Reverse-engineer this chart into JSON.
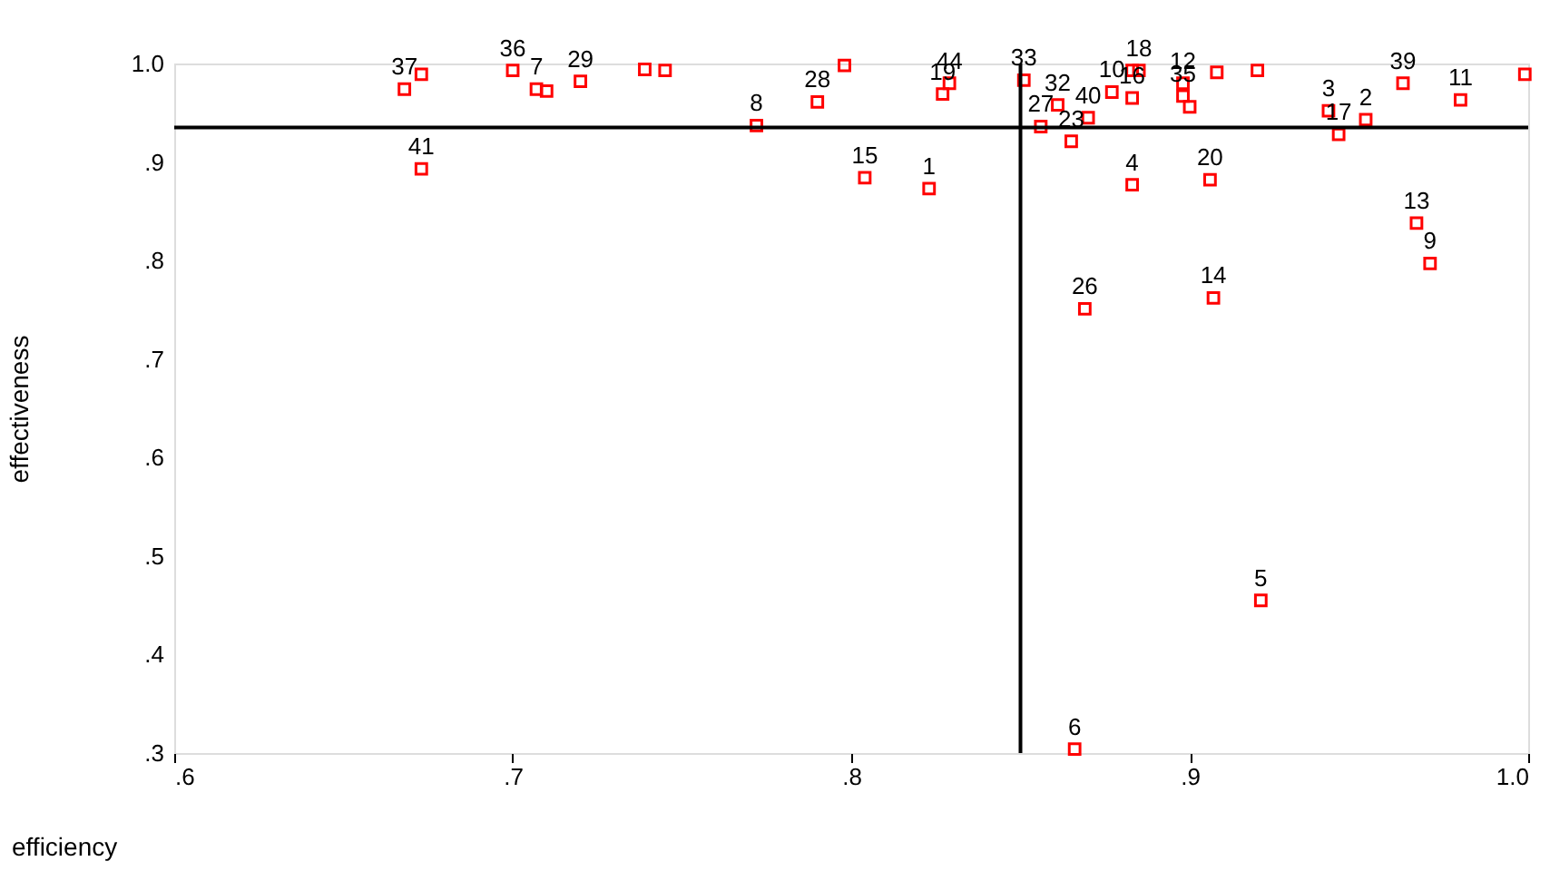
{
  "chart_data": {
    "type": "scatter",
    "xlabel": "efficiency",
    "ylabel": "effectiveness",
    "x": [
      0.668,
      0.673,
      0.673,
      0.7,
      0.707,
      0.71,
      0.72,
      0.739,
      0.745,
      0.772,
      0.79,
      0.798,
      0.804,
      0.823,
      0.827,
      0.829,
      0.851,
      0.856,
      0.861,
      0.865,
      0.87,
      0.877,
      0.883,
      0.883,
      0.885,
      0.898,
      0.898,
      0.9,
      0.908,
      0.92,
      0.941,
      0.944,
      0.952,
      0.963,
      0.98,
      0.999,
      0.883,
      0.906,
      0.967,
      0.971,
      0.869,
      0.907,
      0.921,
      0.866
    ],
    "series": [
      {
        "color": "#ff0000",
        "values": [
          0.974,
          0.989,
          0.893,
          0.993,
          0.974,
          0.972,
          0.982,
          0.994,
          0.993,
          0.937,
          0.961,
          0.998,
          0.884,
          0.873,
          0.969,
          0.98,
          0.983,
          0.936,
          0.958,
          0.921,
          0.945,
          0.971,
          0.965,
          0.993,
          0.993,
          0.98,
          0.967,
          0.956,
          0.991,
          0.993,
          0.952,
          0.928,
          0.943,
          0.98,
          0.963,
          0.989,
          0.877,
          0.882,
          0.838,
          0.797,
          0.751,
          0.762,
          0.455,
          0.304
        ]
      }
    ],
    "annotations": [
      {
        "text": "37",
        "x": 0.668,
        "y": 0.974
      },
      {
        "text": "41",
        "x": 0.673,
        "y": 0.893
      },
      {
        "text": "36",
        "x": 0.7,
        "y": 0.993
      },
      {
        "text": "7",
        "x": 0.707,
        "y": 0.974
      },
      {
        "text": "29",
        "x": 0.72,
        "y": 0.982
      },
      {
        "text": "8",
        "x": 0.772,
        "y": 0.937
      },
      {
        "text": "28",
        "x": 0.79,
        "y": 0.961
      },
      {
        "text": "15",
        "x": 0.804,
        "y": 0.884
      },
      {
        "text": "1",
        "x": 0.823,
        "y": 0.873
      },
      {
        "text": "19",
        "x": 0.827,
        "y": 0.969
      },
      {
        "text": "44",
        "x": 0.829,
        "y": 0.98
      },
      {
        "text": "33",
        "x": 0.851,
        "y": 0.983
      },
      {
        "text": "27",
        "x": 0.856,
        "y": 0.936
      },
      {
        "text": "32",
        "x": 0.861,
        "y": 0.958
      },
      {
        "text": "23",
        "x": 0.865,
        "y": 0.921
      },
      {
        "text": "40",
        "x": 0.87,
        "y": 0.945
      },
      {
        "text": "10",
        "x": 0.877,
        "y": 0.971
      },
      {
        "text": "16",
        "x": 0.883,
        "y": 0.965
      },
      {
        "text": "18",
        "x": 0.885,
        "y": 0.993
      },
      {
        "text": "12",
        "x": 0.898,
        "y": 0.98
      },
      {
        "text": "35",
        "x": 0.898,
        "y": 0.967
      },
      {
        "text": "3",
        "x": 0.941,
        "y": 0.952
      },
      {
        "text": "17",
        "x": 0.944,
        "y": 0.928
      },
      {
        "text": "2",
        "x": 0.952,
        "y": 0.943
      },
      {
        "text": "39",
        "x": 0.963,
        "y": 0.98
      },
      {
        "text": "11",
        "x": 0.98,
        "y": 0.963
      },
      {
        "text": "4",
        "x": 0.883,
        "y": 0.877
      },
      {
        "text": "20",
        "x": 0.906,
        "y": 0.882
      },
      {
        "text": "13",
        "x": 0.967,
        "y": 0.838
      },
      {
        "text": "9",
        "x": 0.971,
        "y": 0.797
      },
      {
        "text": "26",
        "x": 0.869,
        "y": 0.751
      },
      {
        "text": "14",
        "x": 0.907,
        "y": 0.762
      },
      {
        "text": "5",
        "x": 0.921,
        "y": 0.455
      },
      {
        "text": "6",
        "x": 0.866,
        "y": 0.304
      }
    ],
    "xlim": [
      0.6,
      1.0
    ],
    "ylim": [
      0.3,
      1.0
    ],
    "xticks": [
      {
        "value": 0.6,
        "label": ".6"
      },
      {
        "value": 0.7,
        "label": ".7"
      },
      {
        "value": 0.8,
        "label": ".8"
      },
      {
        "value": 0.9,
        "label": ".9"
      },
      {
        "value": 1.0,
        "label": "1.0"
      }
    ],
    "yticks": [
      {
        "value": 0.3,
        "label": ".3"
      },
      {
        "value": 0.4,
        "label": ".4"
      },
      {
        "value": 0.5,
        "label": ".5"
      },
      {
        "value": 0.6,
        "label": ".6"
      },
      {
        "value": 0.7,
        "label": ".7"
      },
      {
        "value": 0.8,
        "label": ".8"
      },
      {
        "value": 0.9,
        "label": ".9"
      },
      {
        "value": 1.0,
        "label": "1.0"
      }
    ],
    "ref_lines": [
      {
        "axis": "x",
        "value": 0.85,
        "color": "#000000"
      },
      {
        "axis": "y",
        "value": 0.935,
        "color": "#000000"
      }
    ],
    "marker": "square",
    "grid": false
  }
}
